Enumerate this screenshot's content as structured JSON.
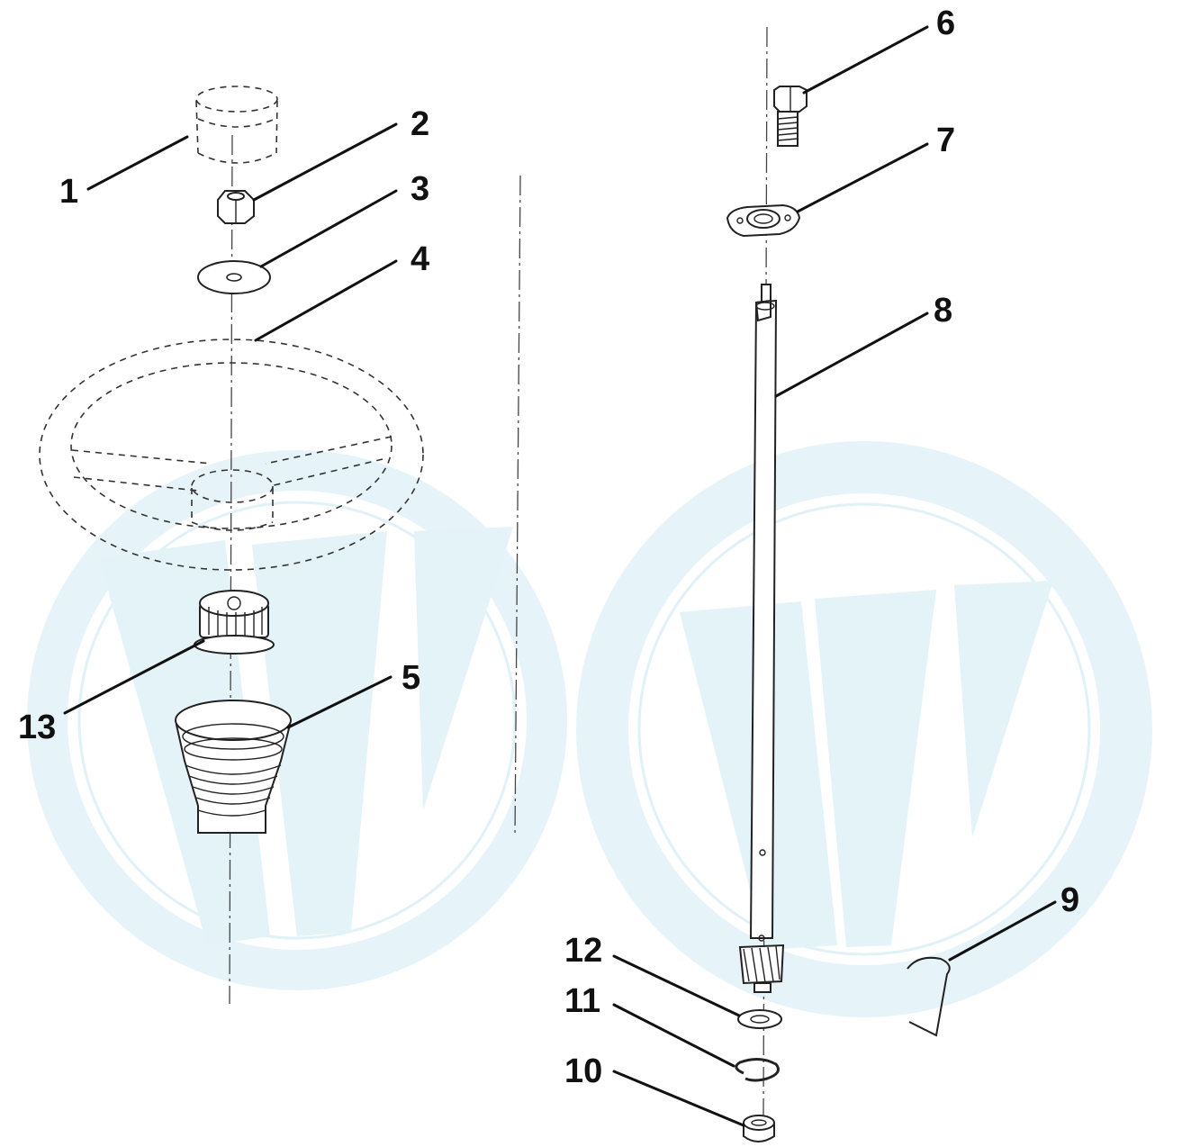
{
  "diagram": {
    "background_color": "#ffffff",
    "watermark_color": "#e3f3f8",
    "line_color": "#222222",
    "callouts": [
      {
        "id": "1",
        "label": "1"
      },
      {
        "id": "2",
        "label": "2"
      },
      {
        "id": "3",
        "label": "3"
      },
      {
        "id": "4",
        "label": "4"
      },
      {
        "id": "5",
        "label": "5"
      },
      {
        "id": "6",
        "label": "6"
      },
      {
        "id": "7",
        "label": "7"
      },
      {
        "id": "8",
        "label": "8"
      },
      {
        "id": "9",
        "label": "9"
      },
      {
        "id": "10",
        "label": "10"
      },
      {
        "id": "11",
        "label": "11"
      },
      {
        "id": "12",
        "label": "12"
      },
      {
        "id": "13",
        "label": "13"
      }
    ]
  }
}
